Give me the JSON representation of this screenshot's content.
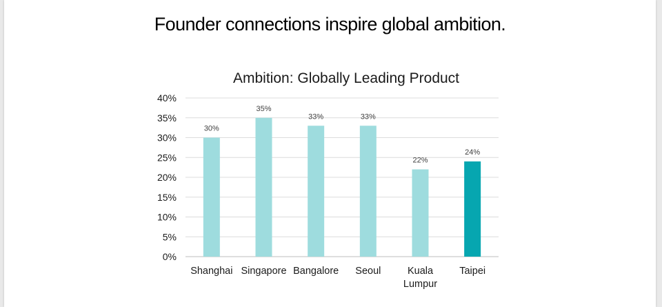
{
  "page": {
    "heading": "Founder connections inspire global ambition."
  },
  "chart_data": {
    "type": "bar",
    "title": "Ambition: Globally Leading Product",
    "categories": [
      "Shanghai",
      "Singapore",
      "Bangalore",
      "Seoul",
      "Kuala Lumpur",
      "Taipei"
    ],
    "category_lines": [
      [
        "Shanghai"
      ],
      [
        "Singapore"
      ],
      [
        "Bangalore"
      ],
      [
        "Seoul"
      ],
      [
        "Kuala",
        "Lumpur"
      ],
      [
        "Taipei"
      ]
    ],
    "values": [
      30,
      35,
      33,
      33,
      22,
      24
    ],
    "value_labels": [
      "30%",
      "35%",
      "33%",
      "33%",
      "22%",
      "24%"
    ],
    "highlight_index": 5,
    "xlabel": "",
    "ylabel": "",
    "ylim": [
      0,
      40
    ],
    "yticks": [
      "0%",
      "5%",
      "10%",
      "15%",
      "20%",
      "25%",
      "30%",
      "35%",
      "40%"
    ],
    "grid": true,
    "legend": "none",
    "colors": {
      "bar": "#9edcde",
      "highlight": "#06a6b0",
      "grid": "#dcdcdc",
      "text": "#1a1a1a",
      "label": "#404040"
    }
  }
}
